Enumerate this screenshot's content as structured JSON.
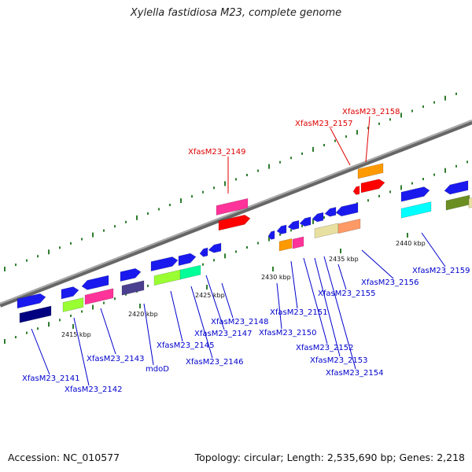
{
  "title": "Xylella fastidiosa M23, complete genome",
  "footer": {
    "accession": "Accession: NC_010577",
    "summary": "Topology: circular; Length: 2,535,690 bp; Genes: 2,218"
  },
  "colors": {
    "backbone": "#888888",
    "dots": "#2e7d2e",
    "highlight_label": "#dd0000",
    "label": "#0000cc"
  },
  "scale_ticks": [
    "2415 kbp",
    "2420 kbp",
    "2425 kbp",
    "2430 kbp",
    "2435 kbp",
    "2440 kbp"
  ],
  "genes": [
    {
      "label": "XfasM23_2141",
      "highlight": false
    },
    {
      "label": "XfasM23_2142",
      "highlight": false
    },
    {
      "label": "XfasM23_2143",
      "highlight": false
    },
    {
      "label": "mdoD",
      "highlight": false
    },
    {
      "label": "XfasM23_2145",
      "highlight": false
    },
    {
      "label": "XfasM23_2146",
      "highlight": false
    },
    {
      "label": "XfasM23_2147",
      "highlight": false
    },
    {
      "label": "XfasM23_2148",
      "highlight": false
    },
    {
      "label": "XfasM23_2149",
      "highlight": true
    },
    {
      "label": "XfasM23_2150",
      "highlight": false
    },
    {
      "label": "XfasM23_2151",
      "highlight": false
    },
    {
      "label": "XfasM23_2152",
      "highlight": false
    },
    {
      "label": "XfasM23_2153",
      "highlight": false
    },
    {
      "label": "XfasM23_2154",
      "highlight": false
    },
    {
      "label": "XfasM23_2155",
      "highlight": false
    },
    {
      "label": "XfasM23_2156",
      "highlight": false
    },
    {
      "label": "XfasM23_2157",
      "highlight": true
    },
    {
      "label": "XfasM23_2158",
      "highlight": true
    },
    {
      "label": "XfasM23_2159",
      "highlight": false
    }
  ]
}
